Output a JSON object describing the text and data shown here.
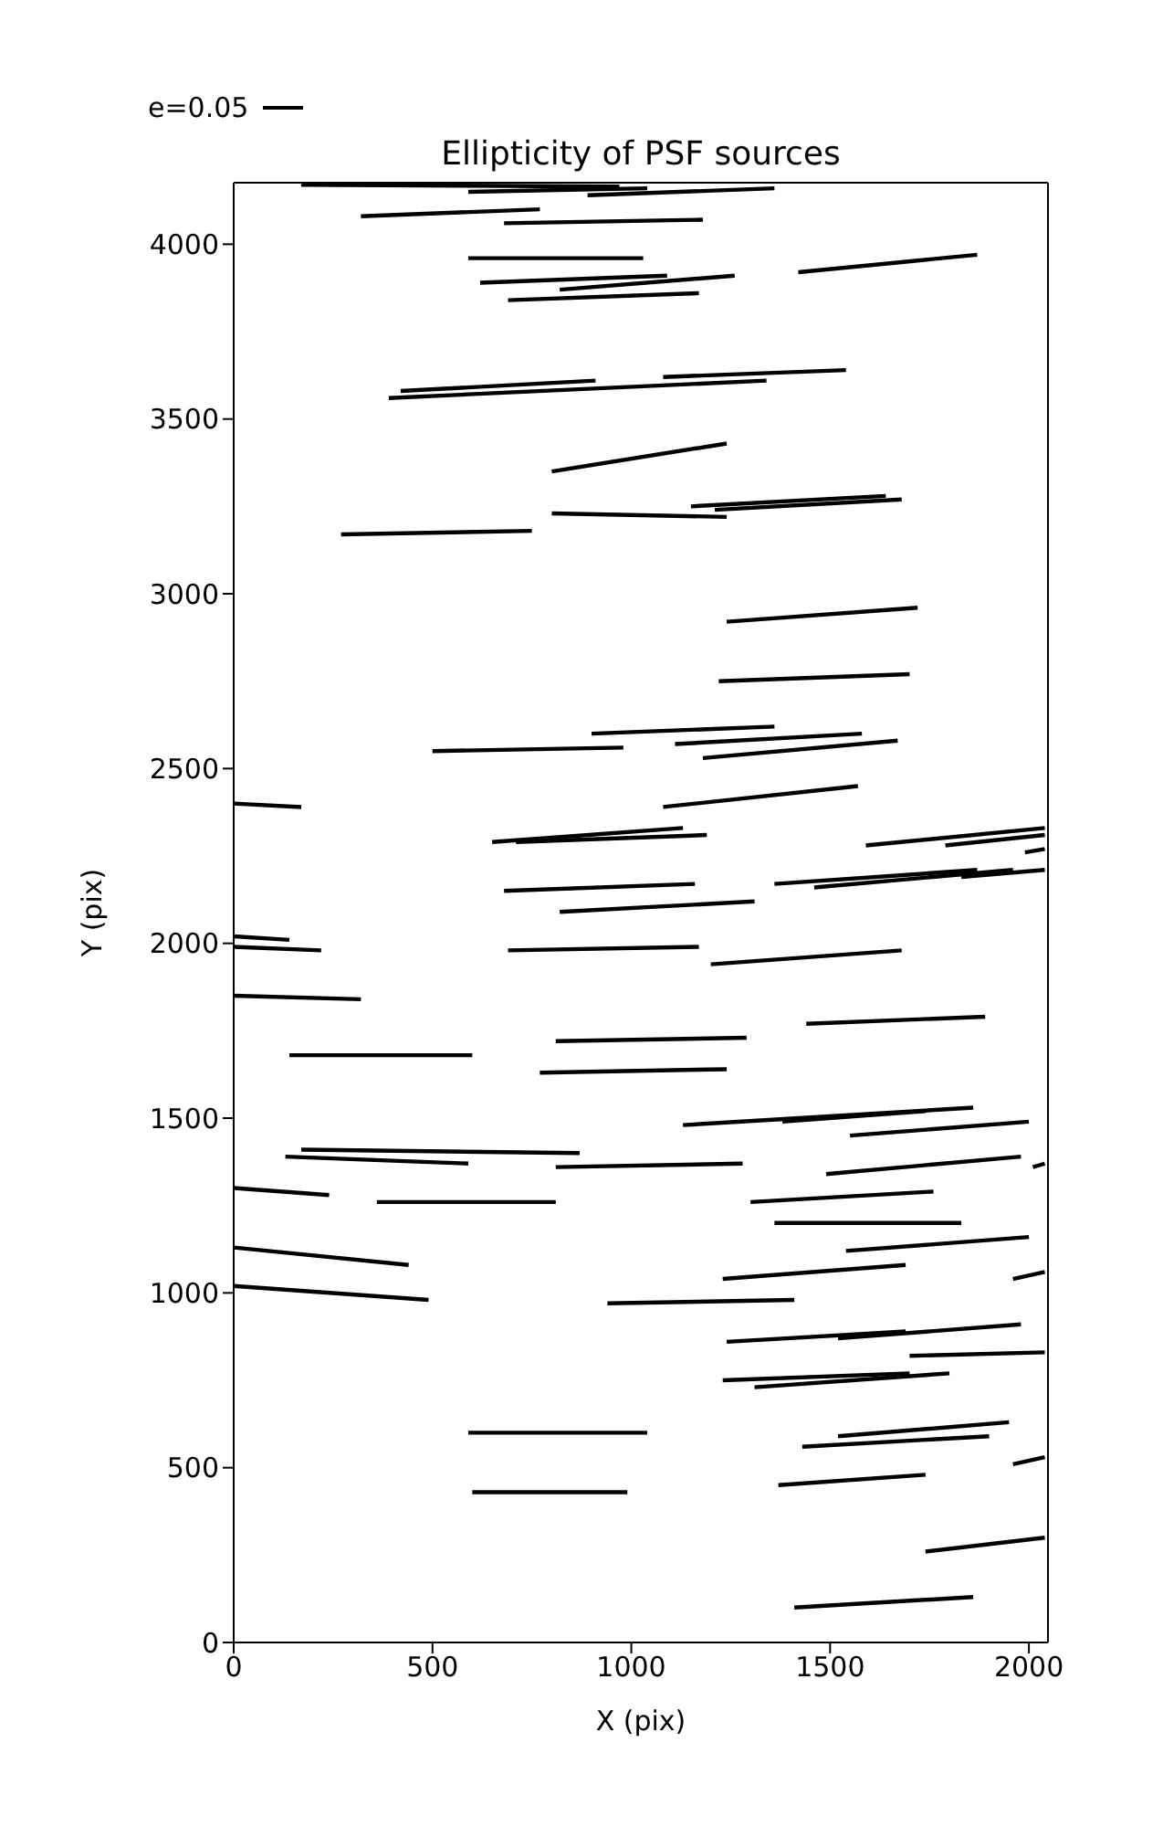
{
  "chart_data": {
    "type": "line",
    "title": "Ellipticity of PSF sources",
    "xlabel": "X (pix)",
    "ylabel": "Y (pix)",
    "annotations": [
      "e=0.05"
    ],
    "xlim": [
      0,
      2048
    ],
    "ylim": [
      0,
      4176
    ],
    "xticks": [
      0,
      500,
      1000,
      1500,
      2000
    ],
    "yticks": [
      0,
      500,
      1000,
      1500,
      2000,
      2500,
      3000,
      3500,
      4000
    ],
    "marker": "none",
    "line_style": "solid",
    "series": [
      {
        "x": [
          170,
          970
        ],
        "values": [
          4170,
          4165
        ],
        "color": "#000000"
      },
      {
        "x": [
          590,
          1040
        ],
        "values": [
          4150,
          4160
        ],
        "color": "#000000"
      },
      {
        "x": [
          890,
          1360
        ],
        "values": [
          4140,
          4160
        ],
        "color": "#000000"
      },
      {
        "x": [
          320,
          770
        ],
        "values": [
          4080,
          4100
        ],
        "color": "#000000"
      },
      {
        "x": [
          680,
          1180
        ],
        "values": [
          4060,
          4070
        ],
        "color": "#000000"
      },
      {
        "x": [
          590,
          1030
        ],
        "values": [
          3960,
          3960
        ],
        "color": "#000000"
      },
      {
        "x": [
          620,
          1090
        ],
        "values": [
          3890,
          3910
        ],
        "color": "#000000"
      },
      {
        "x": [
          820,
          1260
        ],
        "values": [
          3870,
          3910
        ],
        "color": "#000000"
      },
      {
        "x": [
          690,
          1170
        ],
        "values": [
          3840,
          3860
        ],
        "color": "#000000"
      },
      {
        "x": [
          1420,
          1870
        ],
        "values": [
          3920,
          3970
        ],
        "color": "#000000"
      },
      {
        "x": [
          1080,
          1540
        ],
        "values": [
          3620,
          3640
        ],
        "color": "#000000"
      },
      {
        "x": [
          420,
          910
        ],
        "values": [
          3580,
          3610
        ],
        "color": "#000000"
      },
      {
        "x": [
          390,
          1340
        ],
        "values": [
          3560,
          3610
        ],
        "color": "#000000"
      },
      {
        "x": [
          800,
          1240
        ],
        "values": [
          3350,
          3430
        ],
        "color": "#000000"
      },
      {
        "x": [
          1150,
          1640
        ],
        "values": [
          3250,
          3280
        ],
        "color": "#000000"
      },
      {
        "x": [
          1210,
          1680
        ],
        "values": [
          3240,
          3270
        ],
        "color": "#000000"
      },
      {
        "x": [
          800,
          1240
        ],
        "values": [
          3230,
          3220
        ],
        "color": "#000000"
      },
      {
        "x": [
          270,
          750
        ],
        "values": [
          3170,
          3180
        ],
        "color": "#000000"
      },
      {
        "x": [
          1240,
          1720
        ],
        "values": [
          2920,
          2960
        ],
        "color": "#000000"
      },
      {
        "x": [
          1220,
          1700
        ],
        "values": [
          2750,
          2770
        ],
        "color": "#000000"
      },
      {
        "x": [
          500,
          980
        ],
        "values": [
          2550,
          2560
        ],
        "color": "#000000"
      },
      {
        "x": [
          900,
          1360
        ],
        "values": [
          2600,
          2620
        ],
        "color": "#000000"
      },
      {
        "x": [
          1110,
          1580
        ],
        "values": [
          2570,
          2600
        ],
        "color": "#000000"
      },
      {
        "x": [
          1180,
          1670
        ],
        "values": [
          2530,
          2580
        ],
        "color": "#000000"
      },
      {
        "x": [
          1080,
          1570
        ],
        "values": [
          2390,
          2450
        ],
        "color": "#000000"
      },
      {
        "x": [
          650,
          1130
        ],
        "values": [
          2290,
          2330
        ],
        "color": "#000000"
      },
      {
        "x": [
          710,
          1190
        ],
        "values": [
          2290,
          2310
        ],
        "color": "#000000"
      },
      {
        "x": [
          1590,
          2040
        ],
        "values": [
          2280,
          2330
        ],
        "color": "#000000"
      },
      {
        "x": [
          0,
          170
        ],
        "values": [
          2400,
          2390
        ],
        "color": "#000000"
      },
      {
        "x": [
          1790,
          2040
        ],
        "values": [
          2280,
          2310
        ],
        "color": "#000000"
      },
      {
        "x": [
          1990,
          2040
        ],
        "values": [
          2260,
          2270
        ],
        "color": "#000000"
      },
      {
        "x": [
          1360,
          1870
        ],
        "values": [
          2170,
          2210
        ],
        "color": "#000000"
      },
      {
        "x": [
          1460,
          1960
        ],
        "values": [
          2160,
          2210
        ],
        "color": "#000000"
      },
      {
        "x": [
          1830,
          2040
        ],
        "values": [
          2190,
          2210
        ],
        "color": "#000000"
      },
      {
        "x": [
          680,
          1160
        ],
        "values": [
          2150,
          2170
        ],
        "color": "#000000"
      },
      {
        "x": [
          820,
          1310
        ],
        "values": [
          2090,
          2120
        ],
        "color": "#000000"
      },
      {
        "x": [
          0,
          140
        ],
        "values": [
          2020,
          2010
        ],
        "color": "#000000"
      },
      {
        "x": [
          0,
          220
        ],
        "values": [
          1990,
          1980
        ],
        "color": "#000000"
      },
      {
        "x": [
          690,
          1170
        ],
        "values": [
          1980,
          1990
        ],
        "color": "#000000"
      },
      {
        "x": [
          1200,
          1680
        ],
        "values": [
          1940,
          1980
        ],
        "color": "#000000"
      },
      {
        "x": [
          0,
          320
        ],
        "values": [
          1850,
          1840
        ],
        "color": "#000000"
      },
      {
        "x": [
          1440,
          1890
        ],
        "values": [
          1770,
          1790
        ],
        "color": "#000000"
      },
      {
        "x": [
          140,
          600
        ],
        "values": [
          1680,
          1680
        ],
        "color": "#000000"
      },
      {
        "x": [
          810,
          1290
        ],
        "values": [
          1720,
          1730
        ],
        "color": "#000000"
      },
      {
        "x": [
          770,
          1240
        ],
        "values": [
          1630,
          1640
        ],
        "color": "#000000"
      },
      {
        "x": [
          1130,
          1860
        ],
        "values": [
          1480,
          1530
        ],
        "color": "#000000"
      },
      {
        "x": [
          1380,
          1740
        ],
        "values": [
          1490,
          1520
        ],
        "color": "#000000"
      },
      {
        "x": [
          1550,
          2000
        ],
        "values": [
          1450,
          1490
        ],
        "color": "#000000"
      },
      {
        "x": [
          170,
          870
        ],
        "values": [
          1410,
          1400
        ],
        "color": "#000000"
      },
      {
        "x": [
          130,
          590
        ],
        "values": [
          1390,
          1370
        ],
        "color": "#000000"
      },
      {
        "x": [
          810,
          1280
        ],
        "values": [
          1360,
          1370
        ],
        "color": "#000000"
      },
      {
        "x": [
          1490,
          1980
        ],
        "values": [
          1340,
          1390
        ],
        "color": "#000000"
      },
      {
        "x": [
          2010,
          2040
        ],
        "values": [
          1360,
          1370
        ],
        "color": "#000000"
      },
      {
        "x": [
          0,
          240
        ],
        "values": [
          1300,
          1280
        ],
        "color": "#000000"
      },
      {
        "x": [
          1300,
          1760
        ],
        "values": [
          1260,
          1290
        ],
        "color": "#000000"
      },
      {
        "x": [
          360,
          810
        ],
        "values": [
          1260,
          1260
        ],
        "color": "#000000"
      },
      {
        "x": [
          1360,
          1830
        ],
        "values": [
          1200,
          1200
        ],
        "color": "#000000"
      },
      {
        "x": [
          1540,
          2000
        ],
        "values": [
          1120,
          1160
        ],
        "color": "#000000"
      },
      {
        "x": [
          0,
          440
        ],
        "values": [
          1130,
          1080
        ],
        "color": "#000000"
      },
      {
        "x": [
          1230,
          1690
        ],
        "values": [
          1040,
          1080
        ],
        "color": "#000000"
      },
      {
        "x": [
          1960,
          2040
        ],
        "values": [
          1040,
          1060
        ],
        "color": "#000000"
      },
      {
        "x": [
          0,
          490
        ],
        "values": [
          1020,
          980
        ],
        "color": "#000000"
      },
      {
        "x": [
          940,
          1410
        ],
        "values": [
          970,
          980
        ],
        "color": "#000000"
      },
      {
        "x": [
          1240,
          1690
        ],
        "values": [
          860,
          890
        ],
        "color": "#000000"
      },
      {
        "x": [
          1520,
          1980
        ],
        "values": [
          870,
          910
        ],
        "color": "#000000"
      },
      {
        "x": [
          1700,
          2040
        ],
        "values": [
          820,
          830
        ],
        "color": "#000000"
      },
      {
        "x": [
          1230,
          1700
        ],
        "values": [
          750,
          770
        ],
        "color": "#000000"
      },
      {
        "x": [
          1310,
          1800
        ],
        "values": [
          730,
          770
        ],
        "color": "#000000"
      },
      {
        "x": [
          590,
          1040
        ],
        "values": [
          600,
          600
        ],
        "color": "#000000"
      },
      {
        "x": [
          1520,
          1950
        ],
        "values": [
          590,
          630
        ],
        "color": "#000000"
      },
      {
        "x": [
          1430,
          1900
        ],
        "values": [
          560,
          590
        ],
        "color": "#000000"
      },
      {
        "x": [
          1960,
          2040
        ],
        "values": [
          510,
          530
        ],
        "color": "#000000"
      },
      {
        "x": [
          1370,
          1740
        ],
        "values": [
          450,
          480
        ],
        "color": "#000000"
      },
      {
        "x": [
          600,
          990
        ],
        "values": [
          430,
          430
        ],
        "color": "#000000"
      },
      {
        "x": [
          1740,
          2040
        ],
        "values": [
          260,
          300
        ],
        "color": "#000000"
      },
      {
        "x": [
          1410,
          1860
        ],
        "values": [
          100,
          130
        ],
        "color": "#000000"
      }
    ]
  }
}
